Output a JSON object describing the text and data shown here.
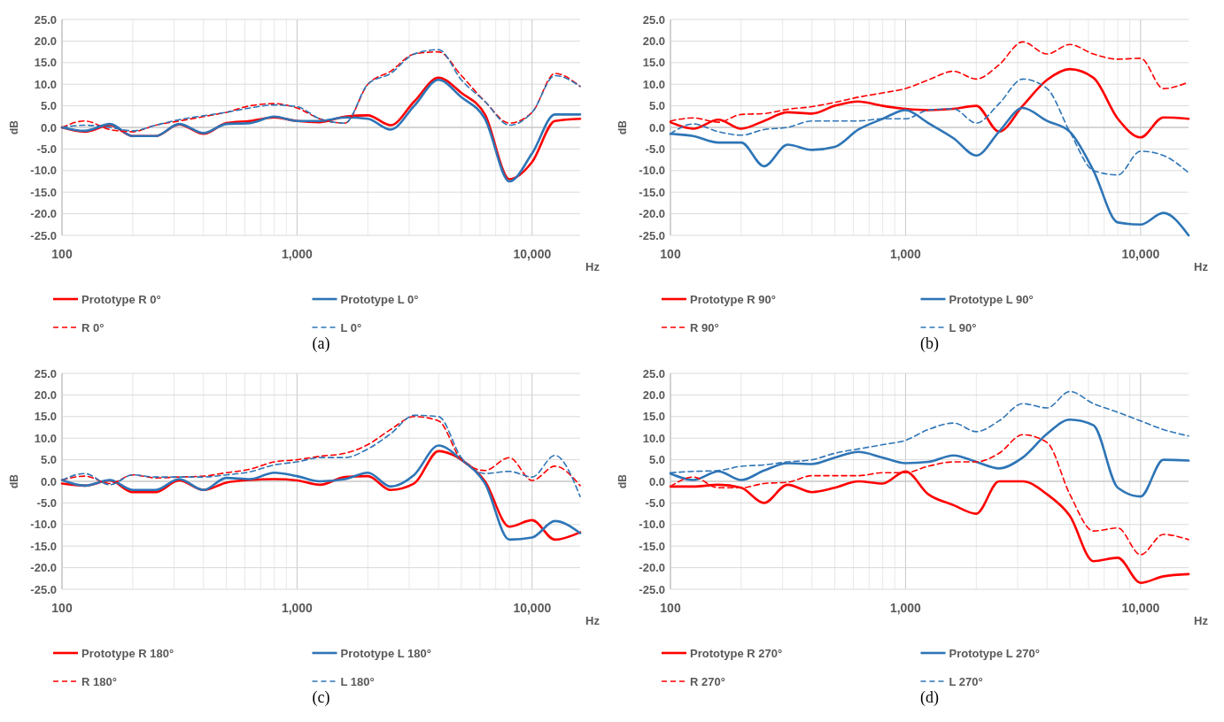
{
  "chart_data": [
    {
      "type": "line",
      "title": "(a)",
      "xlabel": "Hz",
      "ylabel": "dB",
      "log": "x",
      "grid": true,
      "legend": "bottom",
      "xlim": [
        100,
        16000
      ],
      "ylim": [
        -25,
        25
      ],
      "xticks": [
        {
          "value": 100,
          "label": "100"
        },
        {
          "value": 200,
          "label": null
        },
        {
          "value": 300,
          "label": null
        },
        {
          "value": 400,
          "label": null
        },
        {
          "value": 500,
          "label": null
        },
        {
          "value": 600,
          "label": null
        },
        {
          "value": 700,
          "label": null
        },
        {
          "value": 800,
          "label": null
        },
        {
          "value": 900,
          "label": null
        },
        {
          "value": 1000,
          "label": "1,000"
        },
        {
          "value": 2000,
          "label": null
        },
        {
          "value": 3000,
          "label": null
        },
        {
          "value": 4000,
          "label": null
        },
        {
          "value": 5000,
          "label": null
        },
        {
          "value": 6000,
          "label": null
        },
        {
          "value": 7000,
          "label": null
        },
        {
          "value": 8000,
          "label": null
        },
        {
          "value": 9000,
          "label": null
        },
        {
          "value": 10000,
          "label": "10,000"
        }
      ],
      "yticks": [
        {
          "value": -25,
          "label": "-25.0"
        },
        {
          "value": -20,
          "label": "-20.0"
        },
        {
          "value": -15,
          "label": "-15.0"
        },
        {
          "value": -10,
          "label": "-10.0"
        },
        {
          "value": -5,
          "label": "-5.0"
        },
        {
          "value": 0,
          "label": "0.0"
        },
        {
          "value": 5,
          "label": "5.0"
        },
        {
          "value": 10,
          "label": "10.0"
        },
        {
          "value": 15,
          "label": "15.0"
        },
        {
          "value": 20,
          "label": "20.0"
        },
        {
          "value": 25,
          "label": "25.0"
        }
      ],
      "x": [
        100,
        125,
        160,
        200,
        250,
        315,
        400,
        500,
        630,
        800,
        1000,
        1250,
        1600,
        2000,
        2500,
        3150,
        4000,
        5000,
        6300,
        8000,
        10000,
        12500,
        16000
      ],
      "series": [
        {
          "name": "Prototype R 0°",
          "color": "#ff0000",
          "line_style": "solid",
          "values": [
            0,
            -1,
            0.5,
            -2,
            -2,
            0.7,
            -1.5,
            1,
            1.5,
            2.3,
            1.5,
            1.2,
            2.5,
            2.8,
            0.5,
            6,
            11.5,
            8,
            3,
            -12,
            -8,
            1.5,
            2
          ]
        },
        {
          "name": "Prototype L 0°",
          "color": "#2e75b6",
          "line_style": "solid",
          "values": [
            0,
            -0.8,
            0.8,
            -2,
            -2,
            0.8,
            -1.3,
            0.8,
            1,
            2.5,
            1.5,
            1.5,
            2.3,
            2,
            -0.5,
            5,
            11,
            7,
            2,
            -12.5,
            -6,
            3,
            3
          ]
        },
        {
          "name": "R 0°",
          "color": "#ff0000",
          "line_style": "dashed",
          "values": [
            0,
            1.5,
            -0.5,
            -1,
            0.5,
            1.5,
            2.5,
            3.5,
            5,
            5.5,
            4.5,
            2,
            1,
            10,
            13,
            17,
            17.5,
            12,
            6,
            1,
            3.5,
            12.5,
            9.5
          ]
        },
        {
          "name": "L 0°",
          "color": "#2e75b6",
          "line_style": "dashed",
          "values": [
            0,
            0.5,
            0,
            -0.8,
            0.5,
            1.8,
            2.7,
            3.5,
            4.5,
            5.2,
            4.8,
            2,
            1,
            10,
            12.5,
            17,
            18,
            11,
            6,
            0.5,
            3.5,
            12,
            9.5
          ]
        }
      ]
    },
    {
      "type": "line",
      "title": "(b)",
      "xlabel": "Hz",
      "ylabel": "dB",
      "log": "x",
      "grid": true,
      "legend": "bottom",
      "xlim": [
        100,
        16000
      ],
      "ylim": [
        -25,
        25
      ],
      "xticks": [
        {
          "value": 100,
          "label": "100"
        },
        {
          "value": 200,
          "label": null
        },
        {
          "value": 300,
          "label": null
        },
        {
          "value": 400,
          "label": null
        },
        {
          "value": 500,
          "label": null
        },
        {
          "value": 600,
          "label": null
        },
        {
          "value": 700,
          "label": null
        },
        {
          "value": 800,
          "label": null
        },
        {
          "value": 900,
          "label": null
        },
        {
          "value": 1000,
          "label": "1,000"
        },
        {
          "value": 2000,
          "label": null
        },
        {
          "value": 3000,
          "label": null
        },
        {
          "value": 4000,
          "label": null
        },
        {
          "value": 5000,
          "label": null
        },
        {
          "value": 6000,
          "label": null
        },
        {
          "value": 7000,
          "label": null
        },
        {
          "value": 8000,
          "label": null
        },
        {
          "value": 9000,
          "label": null
        },
        {
          "value": 10000,
          "label": "10,000"
        }
      ],
      "yticks": [
        {
          "value": -25,
          "label": "-25.0"
        },
        {
          "value": -20,
          "label": "-20.0"
        },
        {
          "value": -15,
          "label": "-15.0"
        },
        {
          "value": -10,
          "label": "-10.0"
        },
        {
          "value": -5,
          "label": "-5.0"
        },
        {
          "value": 0,
          "label": "0.0"
        },
        {
          "value": 5,
          "label": "5.0"
        },
        {
          "value": 10,
          "label": "10.0"
        },
        {
          "value": 15,
          "label": "15.0"
        },
        {
          "value": 20,
          "label": "20.0"
        },
        {
          "value": 25,
          "label": "25.0"
        }
      ],
      "x": [
        100,
        125,
        160,
        200,
        250,
        315,
        400,
        500,
        630,
        800,
        1000,
        1250,
        1600,
        2000,
        2500,
        3150,
        4000,
        5000,
        6300,
        8000,
        10000,
        12500,
        16000
      ],
      "series": [
        {
          "name": "Prototype R 90°",
          "color": "#ff0000",
          "line_style": "solid",
          "values": [
            1.2,
            -0.3,
            1.8,
            -0.3,
            1.5,
            3.5,
            3.2,
            5,
            6,
            5,
            4.3,
            4,
            4.3,
            5,
            -1,
            5,
            11,
            13.5,
            11.5,
            2,
            -2.3,
            2.3,
            2
          ]
        },
        {
          "name": "Prototype L 90°",
          "color": "#2e75b6",
          "line_style": "solid",
          "values": [
            -1.5,
            -2,
            -3.5,
            -3.5,
            -9,
            -4,
            -5.2,
            -4.5,
            -0.5,
            2,
            4,
            1,
            -2.5,
            -6.5,
            -1,
            4.5,
            1.5,
            -1,
            -10,
            -22,
            -22.5,
            -19.8,
            -25
          ]
        },
        {
          "name": "R 90°",
          "color": "#ff0000",
          "line_style": "dashed",
          "values": [
            1.5,
            2.2,
            1.2,
            3,
            3.2,
            4.2,
            4.8,
            5.8,
            7,
            8,
            9,
            11,
            13,
            11.2,
            14.5,
            19.8,
            17,
            19.2,
            17,
            15.8,
            16,
            9,
            10.5
          ]
        },
        {
          "name": "L 90°",
          "color": "#2e75b6",
          "line_style": "dashed",
          "values": [
            -1.5,
            0.8,
            -1,
            -1.8,
            -0.5,
            0,
            1.5,
            1.5,
            1.5,
            2,
            2,
            4,
            4.3,
            1,
            5.5,
            11.2,
            9,
            -1,
            -10,
            -11,
            -5.5,
            -6.5,
            -10.5
          ]
        }
      ]
    },
    {
      "type": "line",
      "title": "(c)",
      "xlabel": "Hz",
      "ylabel": "dB",
      "log": "x",
      "grid": true,
      "legend": "bottom",
      "xlim": [
        100,
        16000
      ],
      "ylim": [
        -25,
        25
      ],
      "xticks": [
        {
          "value": 100,
          "label": "100"
        },
        {
          "value": 200,
          "label": null
        },
        {
          "value": 300,
          "label": null
        },
        {
          "value": 400,
          "label": null
        },
        {
          "value": 500,
          "label": null
        },
        {
          "value": 600,
          "label": null
        },
        {
          "value": 700,
          "label": null
        },
        {
          "value": 800,
          "label": null
        },
        {
          "value": 900,
          "label": null
        },
        {
          "value": 1000,
          "label": "1,000"
        },
        {
          "value": 2000,
          "label": null
        },
        {
          "value": 3000,
          "label": null
        },
        {
          "value": 4000,
          "label": null
        },
        {
          "value": 5000,
          "label": null
        },
        {
          "value": 6000,
          "label": null
        },
        {
          "value": 7000,
          "label": null
        },
        {
          "value": 8000,
          "label": null
        },
        {
          "value": 9000,
          "label": null
        },
        {
          "value": 10000,
          "label": "10,000"
        }
      ],
      "yticks": [
        {
          "value": -25,
          "label": "-25.0"
        },
        {
          "value": -20,
          "label": "-20.0"
        },
        {
          "value": -15,
          "label": "-15.0"
        },
        {
          "value": -10,
          "label": "-10.0"
        },
        {
          "value": -5,
          "label": "-5.0"
        },
        {
          "value": 0,
          "label": "0.0"
        },
        {
          "value": 5,
          "label": "5.0"
        },
        {
          "value": 10,
          "label": "10.0"
        },
        {
          "value": 15,
          "label": "15.0"
        },
        {
          "value": 20,
          "label": "20.0"
        },
        {
          "value": 25,
          "label": "25.0"
        }
      ],
      "x": [
        100,
        125,
        160,
        200,
        250,
        315,
        400,
        500,
        630,
        800,
        1000,
        1250,
        1600,
        2000,
        2500,
        3150,
        4000,
        5000,
        6300,
        8000,
        10000,
        12500,
        16000
      ],
      "series": [
        {
          "name": "Prototype R 180°",
          "color": "#ff0000",
          "line_style": "solid",
          "values": [
            -0.5,
            -1,
            0.2,
            -2.5,
            -2.5,
            0.2,
            -2,
            -0.3,
            0.3,
            0.5,
            0.2,
            -0.8,
            1,
            1.2,
            -2,
            -0.5,
            7,
            5,
            0,
            -10.5,
            -9,
            -13.5,
            -11.8
          ]
        },
        {
          "name": "Prototype L 180°",
          "color": "#2e75b6",
          "line_style": "solid",
          "values": [
            0.3,
            -1,
            0.3,
            -2,
            -2,
            0.5,
            -2,
            0.8,
            0.5,
            2,
            1.2,
            0,
            0.5,
            2,
            -1.2,
            1.5,
            8.3,
            5,
            -0.5,
            -13.5,
            -13,
            -9.2,
            -12
          ]
        },
        {
          "name": "R 180°",
          "color": "#ff0000",
          "line_style": "dashed",
          "values": [
            0.3,
            1.2,
            -0.5,
            1.5,
            0.8,
            1,
            1.2,
            2,
            2.8,
            4.5,
            5,
            5.8,
            6.5,
            8.5,
            12,
            15,
            14,
            5,
            2.5,
            5.5,
            0.2,
            3.5,
            -1
          ]
        },
        {
          "name": "L 180°",
          "color": "#2e75b6",
          "line_style": "dashed",
          "values": [
            0.3,
            1.8,
            -0.8,
            1.5,
            1,
            1,
            1,
            1.5,
            2.2,
            3.8,
            4.5,
            5.5,
            5.5,
            7.5,
            11,
            15.3,
            15,
            5.5,
            1.8,
            2.3,
            1,
            6,
            -3.5
          ]
        }
      ]
    },
    {
      "type": "line",
      "title": "(d)",
      "xlabel": "Hz",
      "ylabel": "dB",
      "log": "x",
      "grid": true,
      "legend": "bottom",
      "xlim": [
        100,
        16000
      ],
      "ylim": [
        -25,
        25
      ],
      "xticks": [
        {
          "value": 100,
          "label": "100"
        },
        {
          "value": 200,
          "label": null
        },
        {
          "value": 300,
          "label": null
        },
        {
          "value": 400,
          "label": null
        },
        {
          "value": 500,
          "label": null
        },
        {
          "value": 600,
          "label": null
        },
        {
          "value": 700,
          "label": null
        },
        {
          "value": 800,
          "label": null
        },
        {
          "value": 900,
          "label": null
        },
        {
          "value": 1000,
          "label": "1,000"
        },
        {
          "value": 2000,
          "label": null
        },
        {
          "value": 3000,
          "label": null
        },
        {
          "value": 4000,
          "label": null
        },
        {
          "value": 5000,
          "label": null
        },
        {
          "value": 6000,
          "label": null
        },
        {
          "value": 7000,
          "label": null
        },
        {
          "value": 8000,
          "label": null
        },
        {
          "value": 9000,
          "label": null
        },
        {
          "value": 10000,
          "label": "10,000"
        }
      ],
      "yticks": [
        {
          "value": -25,
          "label": "-25.0"
        },
        {
          "value": -20,
          "label": "-20.0"
        },
        {
          "value": -15,
          "label": "-15.0"
        },
        {
          "value": -10,
          "label": "-10.0"
        },
        {
          "value": -5,
          "label": "-5.0"
        },
        {
          "value": 0,
          "label": "0.0"
        },
        {
          "value": 5,
          "label": "5.0"
        },
        {
          "value": 10,
          "label": "10.0"
        },
        {
          "value": 15,
          "label": "15.0"
        },
        {
          "value": 20,
          "label": "20.0"
        },
        {
          "value": 25,
          "label": "25.0"
        }
      ],
      "x": [
        100,
        125,
        160,
        200,
        250,
        315,
        400,
        500,
        630,
        800,
        1000,
        1250,
        1600,
        2000,
        2500,
        3150,
        4000,
        5000,
        6300,
        8000,
        10000,
        12500,
        16000
      ],
      "series": [
        {
          "name": "Prototype R 270°",
          "color": "#ff0000",
          "line_style": "solid",
          "values": [
            -1.2,
            -1.2,
            -0.8,
            -1.5,
            -5,
            -0.8,
            -2.5,
            -1.5,
            0,
            -0.5,
            2.3,
            -3,
            -5.5,
            -7.5,
            0,
            0,
            -3,
            -8,
            -18.5,
            -17.7,
            -23.5,
            -22,
            -21.5
          ]
        },
        {
          "name": "Prototype L 270°",
          "color": "#2e75b6",
          "line_style": "solid",
          "values": [
            1.8,
            0.3,
            2.3,
            0.3,
            2.5,
            4.2,
            4,
            5.5,
            6.8,
            5.5,
            4.2,
            4.5,
            6,
            4.5,
            3,
            5.5,
            11,
            14.3,
            13,
            -1.5,
            -3.5,
            5,
            4.8
          ]
        },
        {
          "name": "R 270°",
          "color": "#ff0000",
          "line_style": "dashed",
          "values": [
            -1.2,
            1,
            -1.5,
            -1.5,
            -0.5,
            -0.2,
            1.3,
            1.3,
            1.3,
            2,
            2,
            3.5,
            4.5,
            4.5,
            6.5,
            10.8,
            9,
            -3,
            -11.5,
            -10.8,
            -17,
            -12.3,
            -13.5
          ]
        },
        {
          "name": "L 270°",
          "color": "#2e75b6",
          "line_style": "dashed",
          "values": [
            2,
            2.3,
            2.5,
            3.5,
            3.8,
            4.5,
            5,
            6.5,
            7.5,
            8.5,
            9.5,
            12,
            13.5,
            11.5,
            14,
            18,
            17,
            20.8,
            18,
            16,
            14,
            12,
            10.5
          ]
        }
      ]
    }
  ]
}
